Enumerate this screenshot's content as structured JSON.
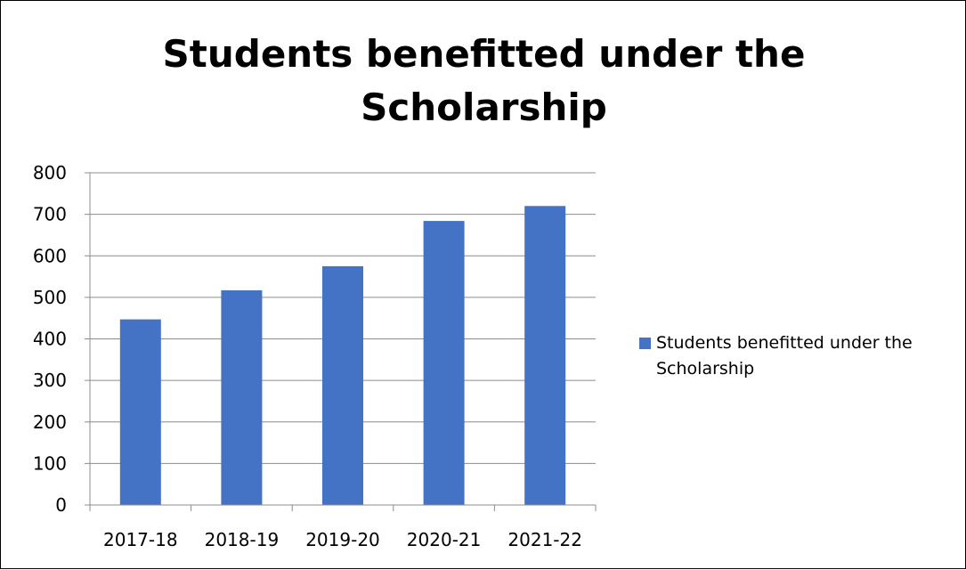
{
  "chart_data": {
    "type": "bar",
    "title": "Students benefitted under the\nScholarship",
    "categories": [
      "2017-18",
      "2018-19",
      "2019-20",
      "2020-21",
      "2021-22"
    ],
    "series": [
      {
        "name": "Students benefitted under the Scholarship",
        "values": [
          447,
          517,
          575,
          684,
          720
        ],
        "color": "#4472C4"
      }
    ],
    "ylim": [
      0,
      800
    ],
    "yticks": [
      0,
      100,
      200,
      300,
      400,
      500,
      600,
      700,
      800
    ],
    "grid": true,
    "legend": "right",
    "xlabel": "",
    "ylabel": ""
  }
}
